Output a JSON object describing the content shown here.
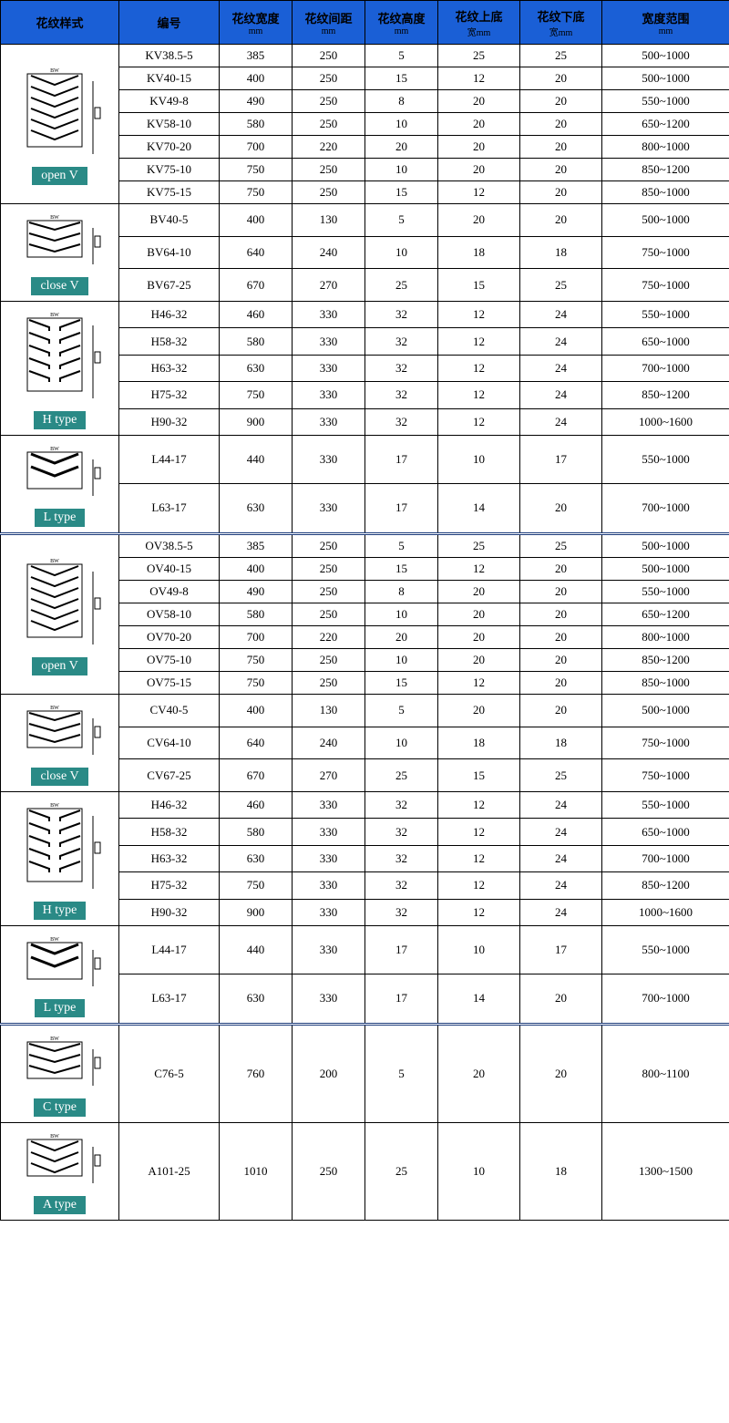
{
  "colors": {
    "header_bg": "#1a5fd6",
    "label_bg": "#2a8a86",
    "label_text": "#ffffff",
    "border": "#000000"
  },
  "columns": [
    {
      "title": "花纹样式",
      "unit": ""
    },
    {
      "title": "编号",
      "unit": ""
    },
    {
      "title": "花纹宽度",
      "unit": "mm"
    },
    {
      "title": "花纹间距",
      "unit": "mm"
    },
    {
      "title": "花纹高度",
      "unit": "mm"
    },
    {
      "title": "花纹上底",
      "unit": "宽mm"
    },
    {
      "title": "花纹下底",
      "unit": "宽mm"
    },
    {
      "title": "宽度范围",
      "unit": "mm"
    }
  ],
  "groups": [
    {
      "label": "open V",
      "pattern": "openV",
      "rows": [
        {
          "id": "KV38.5-5",
          "w": "385",
          "sp": "250",
          "h": "5",
          "tb": "25",
          "bb": "25",
          "range": "500~1000"
        },
        {
          "id": "KV40-15",
          "w": "400",
          "sp": "250",
          "h": "15",
          "tb": "12",
          "bb": "20",
          "range": "500~1000"
        },
        {
          "id": "KV49-8",
          "w": "490",
          "sp": "250",
          "h": "8",
          "tb": "20",
          "bb": "20",
          "range": "550~1000"
        },
        {
          "id": "KV58-10",
          "w": "580",
          "sp": "250",
          "h": "10",
          "tb": "20",
          "bb": "20",
          "range": "650~1200"
        },
        {
          "id": "KV70-20",
          "w": "700",
          "sp": "220",
          "h": "20",
          "tb": "20",
          "bb": "20",
          "range": "800~1000"
        },
        {
          "id": "KV75-10",
          "w": "750",
          "sp": "250",
          "h": "10",
          "tb": "20",
          "bb": "20",
          "range": "850~1200"
        },
        {
          "id": "KV75-15",
          "w": "750",
          "sp": "250",
          "h": "15",
          "tb": "12",
          "bb": "20",
          "range": "850~1000"
        }
      ]
    },
    {
      "label": "close V",
      "pattern": "closeV",
      "rows": [
        {
          "id": "BV40-5",
          "w": "400",
          "sp": "130",
          "h": "5",
          "tb": "20",
          "bb": "20",
          "range": "500~1000"
        },
        {
          "id": "BV64-10",
          "w": "640",
          "sp": "240",
          "h": "10",
          "tb": "18",
          "bb": "18",
          "range": "750~1000"
        },
        {
          "id": "BV67-25",
          "w": "670",
          "sp": "270",
          "h": "25",
          "tb": "15",
          "bb": "25",
          "range": "750~1000"
        }
      ]
    },
    {
      "label": "H type",
      "pattern": "H",
      "rows": [
        {
          "id": "H46-32",
          "w": "460",
          "sp": "330",
          "h": "32",
          "tb": "12",
          "bb": "24",
          "range": "550~1000"
        },
        {
          "id": "H58-32",
          "w": "580",
          "sp": "330",
          "h": "32",
          "tb": "12",
          "bb": "24",
          "range": "650~1000"
        },
        {
          "id": "H63-32",
          "w": "630",
          "sp": "330",
          "h": "32",
          "tb": "12",
          "bb": "24",
          "range": "700~1000"
        },
        {
          "id": "H75-32",
          "w": "750",
          "sp": "330",
          "h": "32",
          "tb": "12",
          "bb": "24",
          "range": "850~1200"
        },
        {
          "id": "H90-32",
          "w": "900",
          "sp": "330",
          "h": "32",
          "tb": "12",
          "bb": "24",
          "range": "1000~1600"
        }
      ]
    },
    {
      "label": "L type",
      "pattern": "L",
      "rows": [
        {
          "id": "L44-17",
          "w": "440",
          "sp": "330",
          "h": "17",
          "tb": "10",
          "bb": "17",
          "range": "550~1000"
        },
        {
          "id": "L63-17",
          "w": "630",
          "sp": "330",
          "h": "17",
          "tb": "14",
          "bb": "20",
          "range": "700~1000"
        }
      ]
    },
    {
      "separator": true,
      "label": "open V",
      "pattern": "openV",
      "rows": [
        {
          "id": "OV38.5-5",
          "w": "385",
          "sp": "250",
          "h": "5",
          "tb": "25",
          "bb": "25",
          "range": "500~1000"
        },
        {
          "id": "OV40-15",
          "w": "400",
          "sp": "250",
          "h": "15",
          "tb": "12",
          "bb": "20",
          "range": "500~1000"
        },
        {
          "id": "OV49-8",
          "w": "490",
          "sp": "250",
          "h": "8",
          "tb": "20",
          "bb": "20",
          "range": "550~1000"
        },
        {
          "id": "OV58-10",
          "w": "580",
          "sp": "250",
          "h": "10",
          "tb": "20",
          "bb": "20",
          "range": "650~1200"
        },
        {
          "id": "OV70-20",
          "w": "700",
          "sp": "220",
          "h": "20",
          "tb": "20",
          "bb": "20",
          "range": "800~1000"
        },
        {
          "id": "OV75-10",
          "w": "750",
          "sp": "250",
          "h": "10",
          "tb": "20",
          "bb": "20",
          "range": "850~1200"
        },
        {
          "id": "OV75-15",
          "w": "750",
          "sp": "250",
          "h": "15",
          "tb": "12",
          "bb": "20",
          "range": "850~1000"
        }
      ]
    },
    {
      "label": "close V",
      "pattern": "closeV",
      "rows": [
        {
          "id": "CV40-5",
          "w": "400",
          "sp": "130",
          "h": "5",
          "tb": "20",
          "bb": "20",
          "range": "500~1000"
        },
        {
          "id": "CV64-10",
          "w": "640",
          "sp": "240",
          "h": "10",
          "tb": "18",
          "bb": "18",
          "range": "750~1000"
        },
        {
          "id": "CV67-25",
          "w": "670",
          "sp": "270",
          "h": "25",
          "tb": "15",
          "bb": "25",
          "range": "750~1000"
        }
      ]
    },
    {
      "label": "H type",
      "pattern": "H",
      "rows": [
        {
          "id": "H46-32",
          "w": "460",
          "sp": "330",
          "h": "32",
          "tb": "12",
          "bb": "24",
          "range": "550~1000"
        },
        {
          "id": "H58-32",
          "w": "580",
          "sp": "330",
          "h": "32",
          "tb": "12",
          "bb": "24",
          "range": "650~1000"
        },
        {
          "id": "H63-32",
          "w": "630",
          "sp": "330",
          "h": "32",
          "tb": "12",
          "bb": "24",
          "range": "700~1000"
        },
        {
          "id": "H75-32",
          "w": "750",
          "sp": "330",
          "h": "32",
          "tb": "12",
          "bb": "24",
          "range": "850~1200"
        },
        {
          "id": "H90-32",
          "w": "900",
          "sp": "330",
          "h": "32",
          "tb": "12",
          "bb": "24",
          "range": "1000~1600"
        }
      ]
    },
    {
      "label": "L type",
      "pattern": "L",
      "rows": [
        {
          "id": "L44-17",
          "w": "440",
          "sp": "330",
          "h": "17",
          "tb": "10",
          "bb": "17",
          "range": "550~1000"
        },
        {
          "id": "L63-17",
          "w": "630",
          "sp": "330",
          "h": "17",
          "tb": "14",
          "bb": "20",
          "range": "700~1000"
        }
      ]
    },
    {
      "separator": true,
      "label": "C type",
      "pattern": "closeV",
      "rows": [
        {
          "id": "C76-5",
          "w": "760",
          "sp": "200",
          "h": "5",
          "tb": "20",
          "bb": "20",
          "range": "800~1100"
        }
      ]
    },
    {
      "label": "A type",
      "pattern": "openV",
      "rows": [
        {
          "id": "A101-25",
          "w": "1010",
          "sp": "250",
          "h": "25",
          "tb": "10",
          "bb": "18",
          "range": "1300~1500"
        }
      ]
    }
  ],
  "svg_dims": {
    "w": 80,
    "h": 90,
    "minH": 70
  }
}
